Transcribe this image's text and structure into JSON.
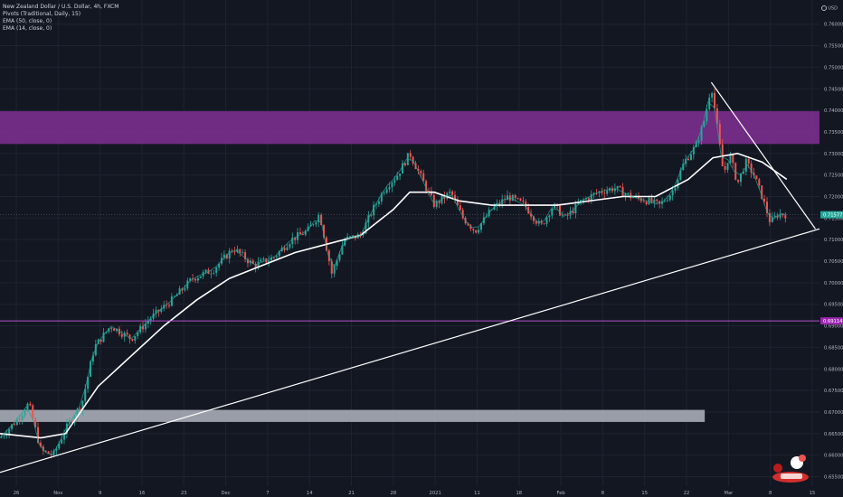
{
  "legend": {
    "symbol_line": "New Zealand Dollar / U.S. Dollar, 4h, FXCM",
    "indicators": [
      "Pivots (Traditional, Daily, 15)",
      "EMA (50, close, 0)",
      "EMA (14, close, 0)"
    ]
  },
  "axis": {
    "currency": "USD"
  },
  "colors": {
    "background": "#131722",
    "grid": "#1f2331",
    "up_candle": "#26a69a",
    "down_candle": "#ef5350",
    "ema50": "#ffffff",
    "ema14": "#26a69a",
    "purple_zone": "#7b2d8e",
    "gray_zone": "#b2b5be",
    "support_line": "#b54fd0",
    "price_badge": "#26a69a",
    "support_badge": "#9c27b0"
  },
  "chart_data": {
    "type": "candlestick",
    "title": "New Zealand Dollar / U.S. Dollar, 4h, FXCM",
    "x_ticks": [
      "26",
      "Nov",
      "9",
      "16",
      "23",
      "Dec",
      "7",
      "14",
      "21",
      "28",
      "2021",
      "11",
      "18",
      "Feb",
      "8",
      "15",
      "22",
      "Mar",
      "8",
      "15"
    ],
    "y_ticks": [
      "0.76000",
      "0.75500",
      "0.75000",
      "0.74500",
      "0.74000",
      "0.73500",
      "0.73000",
      "0.72500",
      "0.72000",
      "0.71500",
      "0.71000",
      "0.70500",
      "0.70000",
      "0.69500",
      "0.69000",
      "0.68500",
      "0.68000",
      "0.67500",
      "0.67000",
      "0.66500",
      "0.66000",
      "0.65500"
    ],
    "ylim": [
      0.6528,
      0.7656
    ],
    "last_price": "0.71577",
    "last_price_value": 0.71577,
    "support_level": "0.69114",
    "support_level_value": 0.69114,
    "price_path": [
      [
        0,
        0.664
      ],
      [
        0.02,
        0.668
      ],
      [
        0.035,
        0.672
      ],
      [
        0.05,
        0.661
      ],
      [
        0.065,
        0.66
      ],
      [
        0.08,
        0.666
      ],
      [
        0.1,
        0.672
      ],
      [
        0.115,
        0.685
      ],
      [
        0.135,
        0.69
      ],
      [
        0.16,
        0.687
      ],
      [
        0.185,
        0.692
      ],
      [
        0.21,
        0.696
      ],
      [
        0.235,
        0.701
      ],
      [
        0.26,
        0.703
      ],
      [
        0.285,
        0.708
      ],
      [
        0.31,
        0.704
      ],
      [
        0.335,
        0.706
      ],
      [
        0.355,
        0.71
      ],
      [
        0.375,
        0.712
      ],
      [
        0.39,
        0.716
      ],
      [
        0.405,
        0.702
      ],
      [
        0.42,
        0.71
      ],
      [
        0.44,
        0.711
      ],
      [
        0.455,
        0.717
      ],
      [
        0.47,
        0.722
      ],
      [
        0.485,
        0.725
      ],
      [
        0.5,
        0.73
      ],
      [
        0.515,
        0.724
      ],
      [
        0.53,
        0.718
      ],
      [
        0.55,
        0.721
      ],
      [
        0.565,
        0.715
      ],
      [
        0.58,
        0.712
      ],
      [
        0.6,
        0.717
      ],
      [
        0.62,
        0.72
      ],
      [
        0.64,
        0.718
      ],
      [
        0.66,
        0.713
      ],
      [
        0.675,
        0.718
      ],
      [
        0.69,
        0.715
      ],
      [
        0.71,
        0.719
      ],
      [
        0.73,
        0.721
      ],
      [
        0.75,
        0.722
      ],
      [
        0.77,
        0.72
      ],
      [
        0.79,
        0.719
      ],
      [
        0.805,
        0.718
      ],
      [
        0.82,
        0.721
      ],
      [
        0.835,
        0.728
      ],
      [
        0.85,
        0.732
      ],
      [
        0.86,
        0.738
      ],
      [
        0.868,
        0.746
      ],
      [
        0.876,
        0.735
      ],
      [
        0.883,
        0.725
      ],
      [
        0.89,
        0.73
      ],
      [
        0.9,
        0.723
      ],
      [
        0.91,
        0.728
      ],
      [
        0.92,
        0.725
      ],
      [
        0.93,
        0.72
      ],
      [
        0.94,
        0.714
      ],
      [
        0.95,
        0.716
      ],
      [
        0.96,
        0.7158
      ]
    ],
    "ema50": [
      [
        0,
        0.665
      ],
      [
        0.05,
        0.664
      ],
      [
        0.08,
        0.665
      ],
      [
        0.12,
        0.676
      ],
      [
        0.16,
        0.683
      ],
      [
        0.2,
        0.69
      ],
      [
        0.24,
        0.696
      ],
      [
        0.28,
        0.701
      ],
      [
        0.32,
        0.704
      ],
      [
        0.36,
        0.707
      ],
      [
        0.4,
        0.709
      ],
      [
        0.44,
        0.711
      ],
      [
        0.48,
        0.717
      ],
      [
        0.5,
        0.721
      ],
      [
        0.53,
        0.721
      ],
      [
        0.56,
        0.719
      ],
      [
        0.6,
        0.718
      ],
      [
        0.64,
        0.718
      ],
      [
        0.68,
        0.718
      ],
      [
        0.72,
        0.719
      ],
      [
        0.76,
        0.72
      ],
      [
        0.8,
        0.72
      ],
      [
        0.84,
        0.724
      ],
      [
        0.87,
        0.729
      ],
      [
        0.9,
        0.73
      ],
      [
        0.93,
        0.728
      ],
      [
        0.96,
        0.724
      ]
    ],
    "zones": [
      {
        "label": "resistance",
        "y_low": 0.7322,
        "y_high": 0.7398,
        "x_start": 0.0,
        "x_end": 1.0,
        "color": "#7b2d8e"
      },
      {
        "label": "support",
        "y_low": 0.6677,
        "y_high": 0.6705,
        "x_start": 0.0,
        "x_end": 0.86,
        "color": "#b2b5be"
      }
    ],
    "lines": [
      {
        "name": "ascending-trendline",
        "from": [
          0.0,
          0.656
        ],
        "to": [
          1.0,
          0.7125
        ]
      },
      {
        "name": "descending-trendline",
        "from": [
          0.868,
          0.7465
        ],
        "to": [
          0.995,
          0.7125
        ]
      }
    ],
    "grid": true,
    "legend_position": "top-left"
  }
}
